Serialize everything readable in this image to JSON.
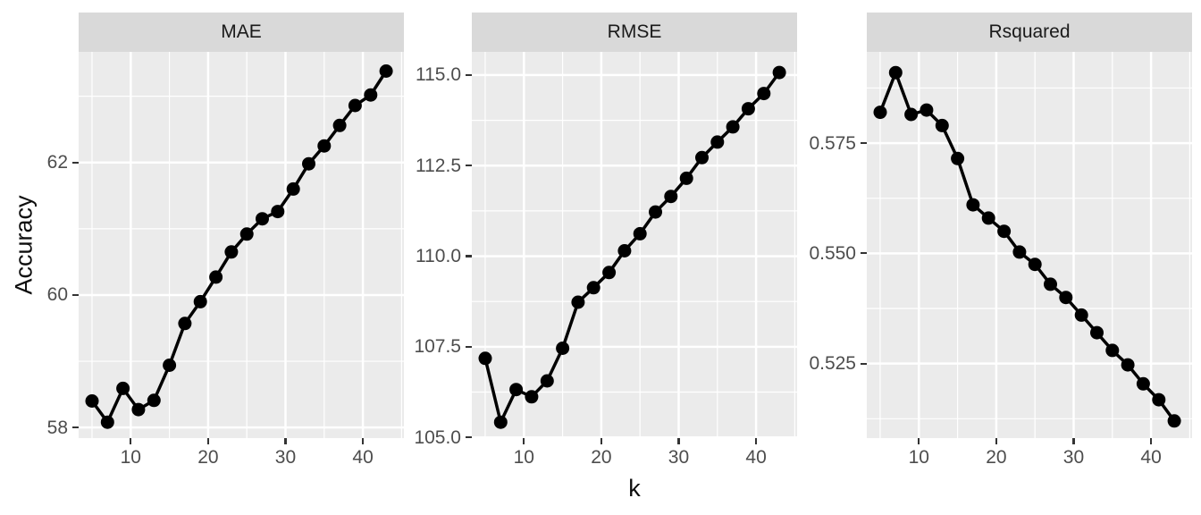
{
  "figure": {
    "x_axis_title": "k",
    "y_axis_title": "Accuracy",
    "colors": {
      "background": "#ffffff",
      "panel_background": "#ebebeb",
      "strip_background": "#d9d9d9",
      "grid": "#ffffff",
      "series": "#000000",
      "tick_text": "#4d4d4d",
      "tick_mark": "#333333",
      "title_text": "#0d0d0d"
    }
  },
  "chart_data": [
    {
      "type": "line",
      "title": "MAE",
      "xlabel": "k",
      "ylabel": "Accuracy",
      "x": [
        5,
        7,
        9,
        11,
        13,
        15,
        17,
        19,
        21,
        23,
        25,
        27,
        29,
        31,
        33,
        35,
        37,
        39,
        41,
        43
      ],
      "values": [
        58.4,
        58.08,
        58.59,
        58.27,
        58.41,
        58.94,
        59.57,
        59.9,
        60.27,
        60.65,
        60.92,
        61.15,
        61.26,
        61.6,
        61.98,
        62.25,
        62.56,
        62.86,
        63.02,
        63.38
      ],
      "xlim": [
        3.27,
        45.3
      ],
      "ylim": [
        57.84,
        63.67
      ],
      "xticks": [
        10,
        20,
        30,
        40
      ],
      "xminor": [
        5,
        15,
        25,
        35,
        45
      ],
      "yticks": [
        58,
        60,
        62
      ],
      "ytick_labels": [
        "58",
        "60",
        "62"
      ],
      "yminor": [
        59,
        61,
        63
      ],
      "legend": "none",
      "grid": "on"
    },
    {
      "type": "line",
      "title": "RMSE",
      "xlabel": "k",
      "ylabel": "Accuracy",
      "x": [
        5,
        7,
        9,
        11,
        13,
        15,
        17,
        19,
        21,
        23,
        25,
        27,
        29,
        31,
        33,
        35,
        37,
        39,
        41,
        43
      ],
      "values": [
        107.18,
        105.42,
        106.32,
        106.12,
        106.56,
        107.46,
        108.73,
        109.13,
        109.55,
        110.15,
        110.62,
        111.22,
        111.65,
        112.15,
        112.72,
        113.15,
        113.57,
        114.07,
        114.49,
        115.07
      ],
      "xlim": [
        3.27,
        45.3
      ],
      "ylim": [
        104.98,
        115.64
      ],
      "xticks": [
        10,
        20,
        30,
        40
      ],
      "xminor": [
        5,
        15,
        25,
        35,
        45
      ],
      "yticks": [
        105.0,
        107.5,
        110.0,
        112.5,
        115.0
      ],
      "ytick_labels": [
        "105.0",
        "107.5",
        "110.0",
        "112.5",
        "115.0"
      ],
      "yminor": [
        106.25,
        108.75,
        111.25,
        113.75
      ],
      "legend": "none",
      "grid": "on"
    },
    {
      "type": "line",
      "title": "Rsquared",
      "xlabel": "k",
      "ylabel": "Accuracy",
      "x": [
        5,
        7,
        9,
        11,
        13,
        15,
        17,
        19,
        21,
        23,
        25,
        27,
        29,
        31,
        33,
        35,
        37,
        39,
        41,
        43
      ],
      "values": [
        0.582,
        0.591,
        0.5815,
        0.5825,
        0.579,
        0.5715,
        0.561,
        0.558,
        0.555,
        0.5503,
        0.5475,
        0.543,
        0.54,
        0.536,
        0.532,
        0.528,
        0.5247,
        0.5204,
        0.5168,
        0.512
      ],
      "xlim": [
        3.27,
        45.3
      ],
      "ylim": [
        0.5081,
        0.5957
      ],
      "xticks": [
        10,
        20,
        30,
        40
      ],
      "xminor": [
        5,
        15,
        25,
        35,
        45
      ],
      "yticks": [
        0.525,
        0.55,
        0.575
      ],
      "ytick_labels": [
        "0.525",
        "0.550",
        "0.575"
      ],
      "yminor": [
        0.5125,
        0.5375,
        0.5625,
        0.5875
      ],
      "legend": "none",
      "grid": "on"
    }
  ]
}
